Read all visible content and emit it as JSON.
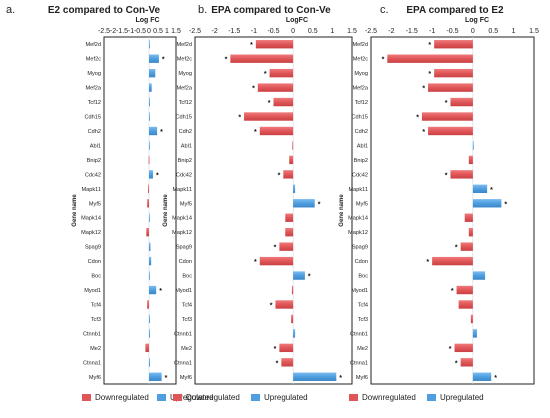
{
  "chart_data": [
    {
      "type": "bar",
      "orientation": "horizontal",
      "panel": "a.",
      "title": "E2 compared to Con-Ve",
      "xlabel": "Log FC",
      "ylabel": "Gene name",
      "xlim": [
        -2.5,
        1.5
      ],
      "xticks": [
        "-2.5",
        "-2",
        "-1.5",
        "-1",
        "-0.5",
        "0",
        "0.5",
        "1",
        "1.5"
      ],
      "categories": [
        "Mef2d",
        "Mef2c",
        "Myog",
        "Mef2a",
        "Tcf12",
        "Cdh15",
        "Cdh2",
        "Abl1",
        "Bnip2",
        "Cdc42",
        "Mapk11",
        "Myf5",
        "Mapk14",
        "Mapk12",
        "Spag9",
        "Cdon",
        "Boc",
        "Myod1",
        "Tcf4",
        "Tcf3",
        "Ctnnb1",
        "Me2",
        "Ctnna1",
        "Myf6"
      ],
      "values": [
        0.03,
        0.55,
        0.35,
        0.15,
        0.05,
        0.04,
        0.45,
        0.0,
        -0.02,
        0.22,
        -0.05,
        -0.1,
        0.03,
        -0.15,
        0.08,
        0.12,
        0.04,
        0.4,
        -0.1,
        0.05,
        0.05,
        -0.2,
        0.05,
        0.7
      ],
      "significant": [
        false,
        true,
        false,
        false,
        false,
        false,
        true,
        false,
        false,
        true,
        false,
        false,
        false,
        false,
        false,
        false,
        false,
        true,
        false,
        false,
        false,
        false,
        false,
        true
      ],
      "legend": [
        "Downregulated",
        "Upregulated"
      ],
      "colors": {
        "down": "#e05658",
        "up": "#4e9ee0"
      }
    },
    {
      "type": "bar",
      "orientation": "horizontal",
      "panel": "b.",
      "title": "EPA compared to Con-Ve",
      "xlabel": "LogFC",
      "ylabel": "Gene name",
      "xlim": [
        -2.5,
        1.5
      ],
      "xticks": [
        "-2.5",
        "-2",
        "-1.5",
        "-1",
        "-0.5",
        "0",
        "0.5",
        "1",
        "1.5"
      ],
      "categories": [
        "Mef2d",
        "Mef2c",
        "Myog",
        "Mef2a",
        "Tcf12",
        "Cdh15",
        "Cdh2",
        "Abl1",
        "Bnip2",
        "Cdc42",
        "Mapk11",
        "Myf5",
        "Mapk14",
        "Mapk12",
        "Spag9",
        "Cdon",
        "Boc",
        "Myod1",
        "Tcf4",
        "Tcf3",
        "Ctnnb1",
        "Me2",
        "Ctnna1",
        "Myf6"
      ],
      "values": [
        -0.95,
        -1.6,
        -0.6,
        -0.9,
        -0.5,
        -1.25,
        -0.85,
        -0.02,
        -0.1,
        -0.25,
        0.05,
        0.55,
        -0.2,
        -0.2,
        -0.35,
        -0.85,
        0.3,
        -0.03,
        -0.45,
        -0.05,
        0.05,
        -0.35,
        -0.3,
        1.1
      ],
      "significant": [
        true,
        true,
        true,
        true,
        true,
        true,
        true,
        false,
        false,
        true,
        false,
        true,
        false,
        false,
        true,
        true,
        true,
        false,
        true,
        false,
        false,
        true,
        true,
        true
      ],
      "legend": [
        "Downregulated",
        "Upregulated"
      ],
      "colors": {
        "down": "#e05658",
        "up": "#4e9ee0"
      }
    },
    {
      "type": "bar",
      "orientation": "horizontal",
      "panel": "c.",
      "title": "EPA compared to E2",
      "xlabel": "Log FC",
      "ylabel": "Gene name",
      "xlim": [
        -2.5,
        1.5
      ],
      "xticks": [
        "-2.5",
        "-2",
        "-1.5",
        "-1",
        "-0.5",
        "0",
        "0.5",
        "1",
        "1.5"
      ],
      "categories": [
        "Mef2d",
        "Mef2c",
        "Myog",
        "Mef2a",
        "Tcf12",
        "Cdh15",
        "Cdh2",
        "Abl1",
        "Bnip2",
        "Cdc42",
        "Mapk11",
        "Myf5",
        "Mapk14",
        "Mapk12",
        "Spag9",
        "Cdon",
        "Boc",
        "Myod1",
        "Tcf4",
        "Tcf3",
        "Ctnnb1",
        "Me2",
        "Ctnna1",
        "Myf6"
      ],
      "values": [
        -0.95,
        -2.1,
        -0.95,
        -1.1,
        -0.55,
        -1.25,
        -1.1,
        0.02,
        -0.1,
        -0.55,
        0.35,
        0.7,
        -0.2,
        -0.1,
        -0.3,
        -1.0,
        0.3,
        -0.4,
        -0.35,
        -0.05,
        0.1,
        -0.45,
        -0.3,
        0.45
      ],
      "significant": [
        true,
        true,
        true,
        true,
        true,
        true,
        true,
        false,
        false,
        true,
        true,
        true,
        false,
        false,
        true,
        true,
        false,
        true,
        false,
        false,
        false,
        true,
        true,
        true
      ],
      "legend": [
        "Downregulated",
        "Upregulated"
      ],
      "colors": {
        "down": "#e05658",
        "up": "#4e9ee0"
      }
    }
  ]
}
